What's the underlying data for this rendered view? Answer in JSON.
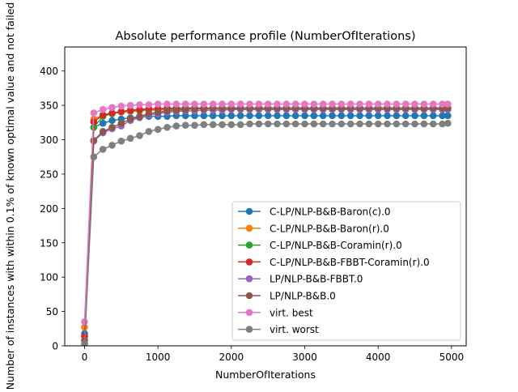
{
  "chart_data": {
    "type": "line",
    "title": "Absolute performance profile (NumberOfIterations)",
    "xlabel": "NumberOfIterations",
    "ylabel": "Number of instances with within 0.1% of known optimal value and not failed",
    "xlim": [
      -270,
      5200
    ],
    "ylim": [
      0,
      435
    ],
    "xticks": [
      0,
      1000,
      2000,
      3000,
      4000,
      5000
    ],
    "yticks": [
      0,
      50,
      100,
      150,
      200,
      250,
      300,
      350,
      400
    ],
    "legend_position": "lower-right",
    "grid": false,
    "x": [
      0,
      125,
      250,
      375,
      500,
      625,
      750,
      875,
      1000,
      1125,
      1250,
      1375,
      1500,
      1625,
      1750,
      1875,
      2000,
      2125,
      2250,
      2375,
      2500,
      2625,
      2750,
      2875,
      3000,
      3125,
      3250,
      3375,
      3500,
      3625,
      3750,
      3875,
      4000,
      4125,
      4250,
      4375,
      4500,
      4625,
      4750,
      4875,
      4950
    ],
    "series": [
      {
        "name": "C-LP/NLP-B&B-Baron(c).0",
        "color": "#1f77b4",
        "values": [
          18,
          318,
          324,
          328,
          330,
          332,
          333,
          334,
          334,
          334,
          335,
          335,
          335,
          335,
          335,
          335,
          335,
          335,
          335,
          335,
          335,
          335,
          335,
          335,
          335,
          335,
          335,
          335,
          335,
          335,
          335,
          335,
          335,
          335,
          335,
          335,
          335,
          335,
          335,
          335,
          335
        ]
      },
      {
        "name": "C-LP/NLP-B&B-Baron(r).0",
        "color": "#ff7f0e",
        "values": [
          27,
          330,
          336,
          338,
          340,
          341,
          342,
          343,
          343,
          344,
          344,
          344,
          345,
          345,
          345,
          345,
          345,
          345,
          345,
          345,
          345,
          345,
          345,
          345,
          345,
          345,
          345,
          345,
          345,
          345,
          345,
          345,
          345,
          345,
          345,
          345,
          345,
          345,
          345,
          345,
          345
        ]
      },
      {
        "name": "C-LP/NLP-B&B-Coramin(r).0",
        "color": "#2ca02c",
        "values": [
          14,
          318,
          334,
          338,
          341,
          342,
          343,
          344,
          345,
          345,
          345,
          346,
          346,
          346,
          346,
          346,
          346,
          346,
          346,
          346,
          346,
          346,
          346,
          346,
          346,
          346,
          346,
          346,
          346,
          346,
          346,
          346,
          346,
          346,
          346,
          346,
          346,
          346,
          346,
          346,
          346
        ]
      },
      {
        "name": "C-LP/NLP-B&B-FBBT-Coramin(r).0",
        "color": "#d62728",
        "values": [
          14,
          326,
          336,
          339,
          341,
          343,
          344,
          345,
          345,
          346,
          346,
          346,
          346,
          346,
          346,
          346,
          346,
          346,
          346,
          346,
          346,
          346,
          346,
          346,
          346,
          346,
          346,
          346,
          346,
          346,
          346,
          346,
          346,
          346,
          346,
          346,
          346,
          346,
          346,
          346,
          346
        ]
      },
      {
        "name": "LP/NLP-B&B-FBBT.0",
        "color": "#9467bd",
        "values": [
          8,
          298,
          310,
          316,
          320,
          328,
          332,
          336,
          338,
          340,
          341,
          342,
          342,
          343,
          343,
          343,
          344,
          344,
          344,
          344,
          344,
          344,
          344,
          344,
          344,
          344,
          344,
          344,
          344,
          344,
          344,
          344,
          344,
          344,
          344,
          344,
          344,
          344,
          344,
          344,
          344
        ]
      },
      {
        "name": "LP/NLP-B&B.0",
        "color": "#8c564b",
        "values": [
          8,
          299,
          312,
          318,
          324,
          330,
          334,
          338,
          340,
          342,
          343,
          344,
          345,
          345,
          346,
          346,
          346,
          346,
          346,
          346,
          346,
          346,
          346,
          346,
          346,
          346,
          346,
          346,
          346,
          346,
          346,
          346,
          346,
          346,
          346,
          346,
          346,
          346,
          346,
          346,
          346
        ]
      },
      {
        "name": "virt. best",
        "color": "#e377c2",
        "values": [
          35,
          339,
          344,
          347,
          349,
          350,
          351,
          351,
          352,
          352,
          352,
          352,
          352,
          352,
          352,
          352,
          352,
          352,
          352,
          352,
          352,
          352,
          352,
          352,
          352,
          352,
          352,
          352,
          352,
          352,
          352,
          352,
          352,
          352,
          352,
          352,
          352,
          352,
          352,
          352,
          352
        ]
      },
      {
        "name": "virt. worst",
        "color": "#7f7f7f",
        "values": [
          3,
          275,
          286,
          292,
          298,
          302,
          306,
          312,
          315,
          318,
          320,
          321,
          321,
          322,
          322,
          322,
          322,
          322,
          323,
          323,
          323,
          323,
          323,
          323,
          323,
          323,
          323,
          323,
          323,
          323,
          323,
          323,
          323,
          323,
          323,
          323,
          323,
          323,
          323,
          323,
          324
        ]
      }
    ]
  }
}
